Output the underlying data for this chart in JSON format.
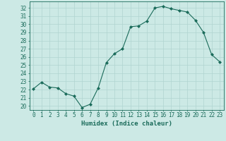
{
  "x": [
    0,
    1,
    2,
    3,
    4,
    5,
    6,
    7,
    8,
    9,
    10,
    11,
    12,
    13,
    14,
    15,
    16,
    17,
    18,
    19,
    20,
    21,
    22,
    23
  ],
  "y": [
    22.1,
    22.9,
    22.3,
    22.2,
    21.5,
    21.2,
    19.8,
    20.2,
    22.2,
    25.3,
    26.4,
    27.0,
    29.7,
    29.8,
    30.4,
    32.0,
    32.2,
    31.9,
    31.7,
    31.5,
    30.5,
    29.0,
    26.3,
    25.4
  ],
  "line_color": "#1a6b5a",
  "marker": "D",
  "markersize": 2.0,
  "bg_color": "#cce9e5",
  "grid_color": "#b0d4d0",
  "xlabel": "Humidex (Indice chaleur)",
  "ylabel_ticks": [
    20,
    21,
    22,
    23,
    24,
    25,
    26,
    27,
    28,
    29,
    30,
    31,
    32
  ],
  "ylim": [
    19.5,
    32.8
  ],
  "xlim": [
    -0.5,
    23.5
  ],
  "xlabel_fontsize": 6.5,
  "tick_fontsize": 5.5
}
